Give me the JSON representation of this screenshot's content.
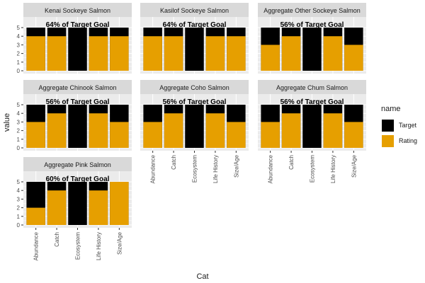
{
  "chart_data": {
    "type": "bar",
    "layout": "facet_wrap, stacked",
    "xlabel": "Cat",
    "ylabel": "value",
    "categories": [
      "Abundance",
      "Catch",
      "Ecosystem",
      "Life History",
      "Size/Age"
    ],
    "ylim": [
      0,
      5
    ],
    "yticks": [
      0,
      1,
      2,
      3,
      4,
      5
    ],
    "grid": true,
    "legend": {
      "title": "name",
      "position": "right",
      "entries": [
        {
          "name": "Target",
          "color": "#000000"
        },
        {
          "name": "Rating",
          "color": "#E69F00"
        }
      ]
    },
    "panels": [
      {
        "title": "Kenai Sockeye Salmon",
        "annotation": "64% of Target Goal",
        "target": [
          5,
          5,
          5,
          5,
          5
        ],
        "rating": [
          4,
          4,
          0,
          4,
          4
        ]
      },
      {
        "title": "Kasilof Sockeye Salmon",
        "annotation": "64% of Target Goal",
        "target": [
          5,
          5,
          5,
          5,
          5
        ],
        "rating": [
          4,
          4,
          0,
          4,
          4
        ]
      },
      {
        "title": "Aggregate Other Sockeye Salmon",
        "annotation": "56% of Target Goal",
        "target": [
          5,
          5,
          5,
          5,
          5
        ],
        "rating": [
          3,
          4,
          0,
          4,
          3
        ]
      },
      {
        "title": "Aggregate Chinook Salmon",
        "annotation": "56% of Target Goal",
        "target": [
          5,
          5,
          5,
          5,
          5
        ],
        "rating": [
          3,
          4,
          0,
          4,
          3
        ]
      },
      {
        "title": "Aggregate Coho Salmon",
        "annotation": "56% of Target Goal",
        "target": [
          5,
          5,
          5,
          5,
          5
        ],
        "rating": [
          3,
          4,
          0,
          4,
          3
        ]
      },
      {
        "title": "Aggregate Chum Salmon",
        "annotation": "56% of Target Goal",
        "target": [
          5,
          5,
          5,
          5,
          5
        ],
        "rating": [
          3,
          4,
          0,
          4,
          3
        ]
      },
      {
        "title": "Aggregate Pink Salmon",
        "annotation": "60% of Target Goal",
        "target": [
          5,
          5,
          5,
          5,
          5
        ],
        "rating": [
          2,
          4,
          0,
          4,
          5
        ]
      }
    ]
  }
}
